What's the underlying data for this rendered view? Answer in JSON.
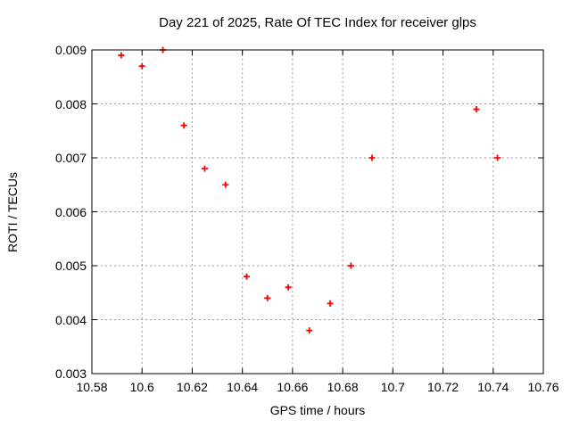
{
  "chart_data": {
    "type": "scatter",
    "title": "Day 221 of 2025, Rate Of TEC Index for receiver glps",
    "xlabel": "GPS time / hours",
    "ylabel": "ROTI / TECUs",
    "xlim": [
      10.58,
      10.76
    ],
    "ylim": [
      0.003,
      0.009
    ],
    "xticks": [
      10.58,
      10.6,
      10.62,
      10.64,
      10.66,
      10.68,
      10.7,
      10.72,
      10.74,
      10.76
    ],
    "xtick_labels": [
      "10.58",
      "10.6",
      "10.62",
      "10.64",
      "10.66",
      "10.68",
      "10.7",
      "10.72",
      "10.74",
      "10.76"
    ],
    "yticks": [
      0.003,
      0.004,
      0.005,
      0.006,
      0.007,
      0.008,
      0.009
    ],
    "ytick_labels": [
      "0.003",
      "0.004",
      "0.005",
      "0.006",
      "0.007",
      "0.008",
      "0.009"
    ],
    "grid": true,
    "legend": "none",
    "marker": "plus",
    "points": [
      [
        10.5917,
        0.0089
      ],
      [
        10.6,
        0.0087
      ],
      [
        10.6083,
        0.009
      ],
      [
        10.6167,
        0.0076
      ],
      [
        10.625,
        0.0068
      ],
      [
        10.6333,
        0.0065
      ],
      [
        10.6417,
        0.0048
      ],
      [
        10.65,
        0.0044
      ],
      [
        10.6583,
        0.0046
      ],
      [
        10.6667,
        0.0038
      ],
      [
        10.675,
        0.0043
      ],
      [
        10.6833,
        0.005
      ],
      [
        10.6917,
        0.007
      ],
      [
        10.7333,
        0.0079
      ],
      [
        10.7417,
        0.007
      ]
    ],
    "colors": {
      "background": "#ffffff",
      "border": "#000000",
      "grid": "#999999",
      "marker": "#ff0000",
      "text": "#000000"
    }
  }
}
